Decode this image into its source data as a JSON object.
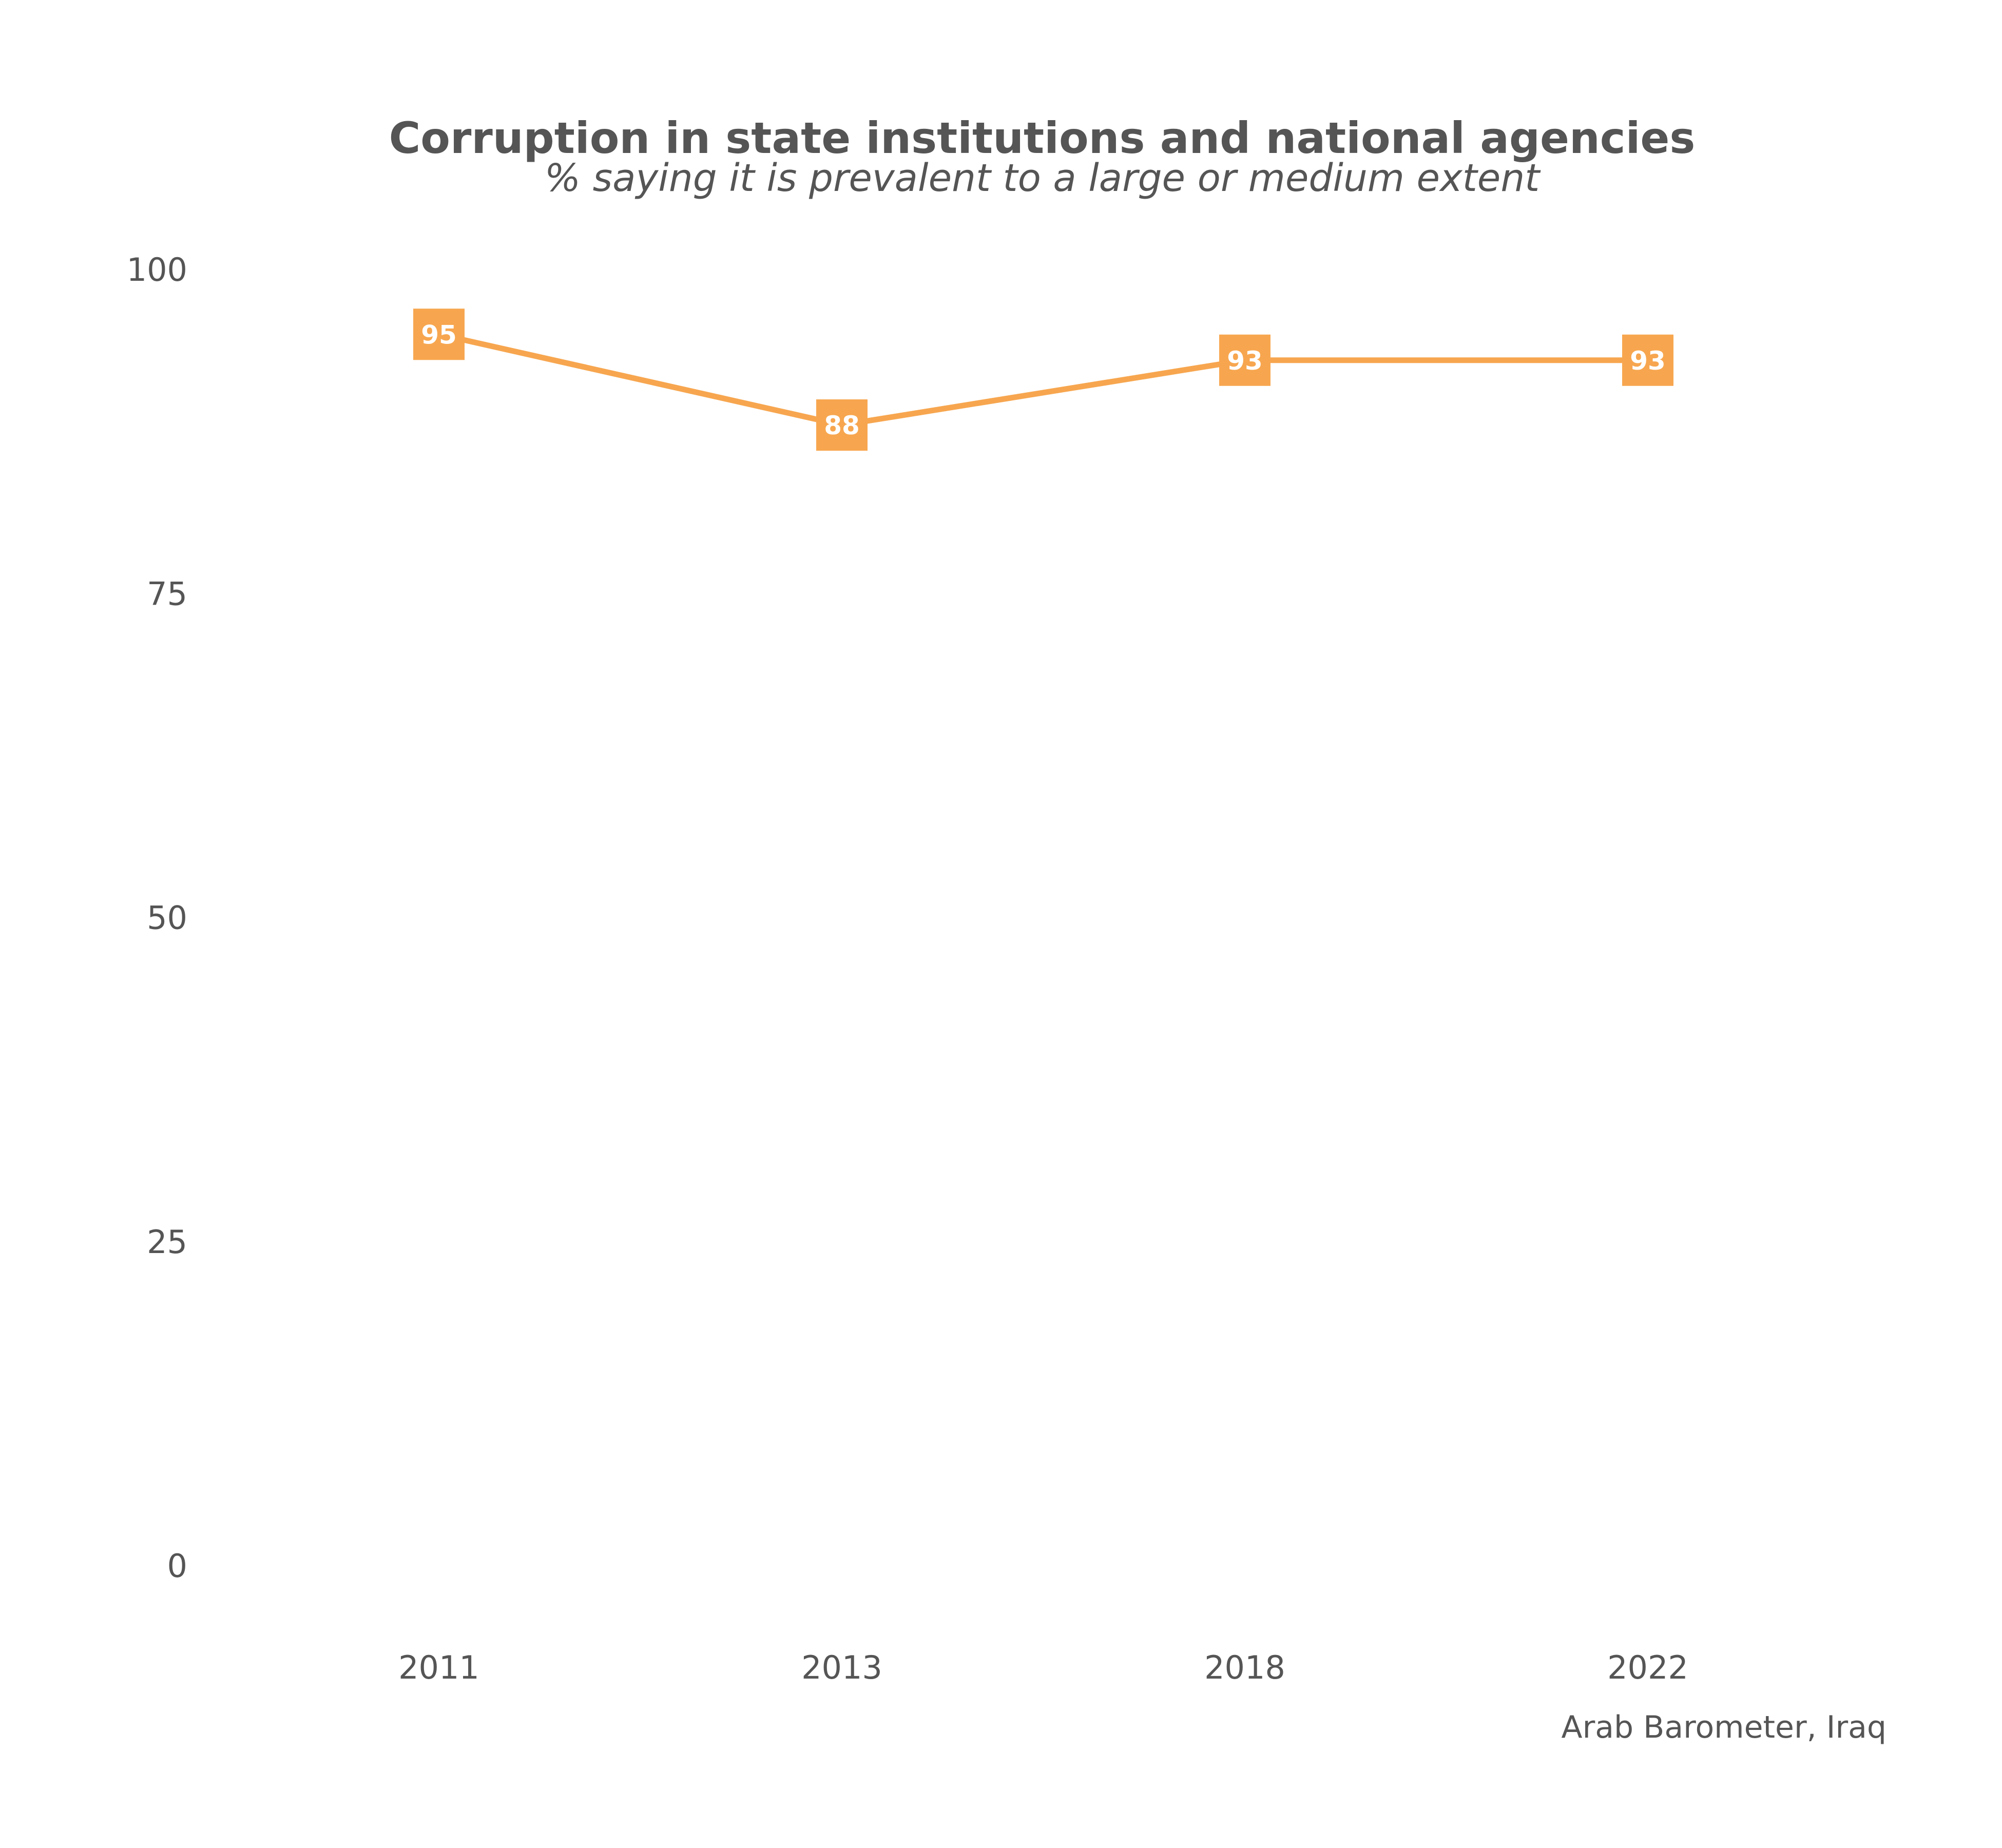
{
  "chart_data": {
    "type": "line",
    "title": "Corruption in state institutions and national agencies",
    "subtitle": "% saying it is prevalent to a large or medium extent",
    "caption": "Arab Barometer, Iraq",
    "xlabel": "",
    "ylabel": "",
    "categories": [
      "2011",
      "2013",
      "2018",
      "2022"
    ],
    "series": [
      {
        "values": [
          95,
          88,
          93,
          93
        ],
        "color": "#F7A64F"
      }
    ],
    "ylim": [
      0,
      100
    ],
    "yticks": [
      0,
      25,
      50,
      75,
      100
    ],
    "grid": false,
    "legend": "none",
    "data_labels": true
  }
}
